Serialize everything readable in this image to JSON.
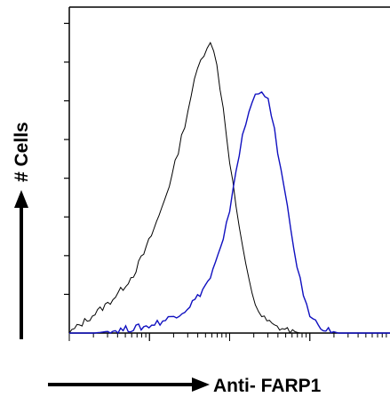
{
  "chart_data": {
    "type": "line",
    "title": "",
    "xlabel": "Anti- FARP1",
    "ylabel": "# Cells",
    "x_scale": "log",
    "xlim": [
      0,
      100
    ],
    "ylim": [
      0,
      100
    ],
    "grid": false,
    "legend": "none",
    "series": [
      {
        "color": "#000000",
        "x": [
          0,
          4,
          8,
          12,
          16,
          20,
          24,
          28,
          32,
          34,
          36,
          38,
          40,
          42,
          44,
          46,
          48,
          50,
          52,
          54,
          56,
          58,
          60,
          64,
          68,
          72,
          76,
          80,
          90,
          100
        ],
        "values": [
          0,
          3,
          6,
          9,
          13,
          18,
          26,
          36,
          48,
          56,
          64,
          73,
          81,
          86,
          90,
          82,
          69,
          53,
          39,
          26,
          16,
          9,
          5,
          2,
          1,
          0,
          0,
          0,
          0,
          0
        ]
      },
      {
        "color": "#1010c0",
        "x": [
          0,
          8,
          16,
          24,
          30,
          36,
          40,
          44,
          48,
          50,
          52,
          54,
          56,
          58,
          60,
          62,
          64,
          66,
          68,
          70,
          72,
          74,
          76,
          80,
          84,
          90,
          100
        ],
        "values": [
          0,
          0,
          1,
          2,
          4,
          7,
          11,
          17,
          28,
          38,
          50,
          60,
          68,
          73,
          75,
          71,
          62,
          50,
          38,
          26,
          16,
          8,
          4,
          1,
          0,
          0,
          0
        ]
      }
    ]
  }
}
